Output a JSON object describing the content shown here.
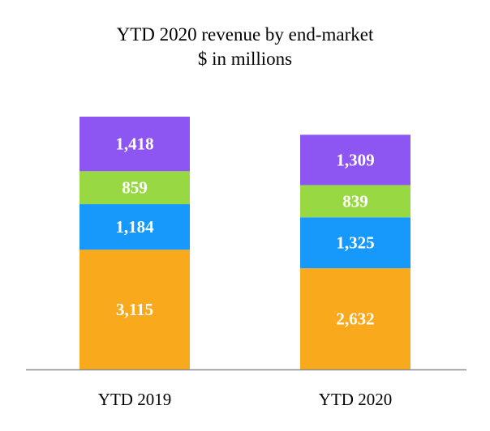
{
  "chart_data": {
    "type": "bar",
    "stacked": true,
    "title": "YTD 2020 revenue by end-market",
    "subtitle": "$ in millions",
    "categories": [
      "YTD 2019",
      "YTD 2020"
    ],
    "series": [
      {
        "values": [
          3115,
          2632
        ],
        "labels": [
          "3,115",
          "2,632"
        ],
        "color": "#f8a91c"
      },
      {
        "values": [
          1184,
          1325
        ],
        "labels": [
          "1,184",
          "1,325"
        ],
        "color": "#1799fb"
      },
      {
        "values": [
          859,
          839
        ],
        "labels": [
          "859",
          "839"
        ],
        "color": "#98d943"
      },
      {
        "values": [
          1418,
          1309
        ],
        "labels": [
          "1,418",
          "1,309"
        ],
        "color": "#8d55f2"
      }
    ],
    "ylim": [
      0,
      6576
    ],
    "grid": false,
    "legend": "none"
  }
}
